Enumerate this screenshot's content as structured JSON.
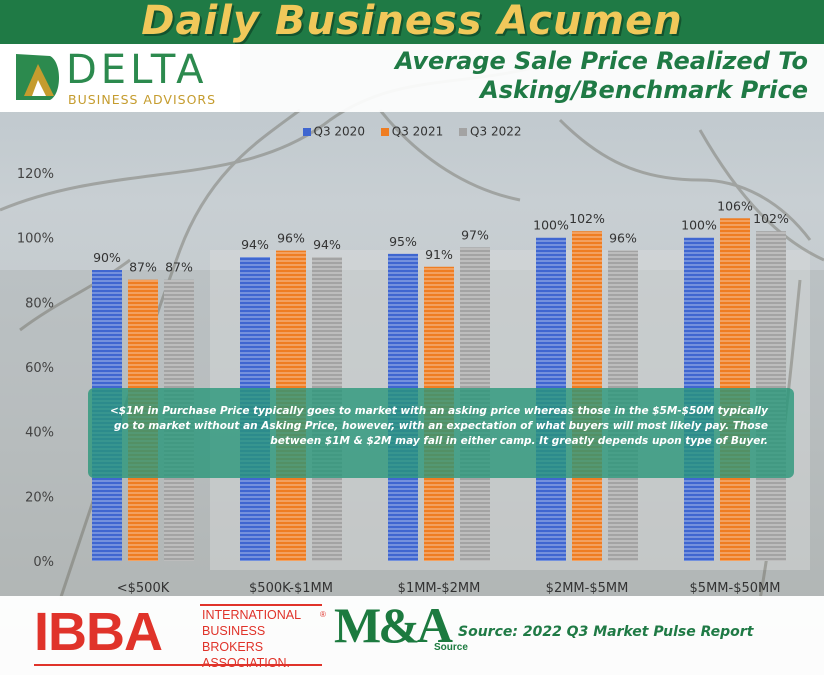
{
  "header": {
    "banner_title": "Daily Business Acumen",
    "company_name": "DELTA",
    "company_tagline": "BUSINESS ADVISORS"
  },
  "chart_data": {
    "type": "bar",
    "title": "Average Sale Price Realized To Asking/Benchmark Price",
    "categories": [
      "<$500K",
      "$500K-$1MM",
      "$1MM-$2MM",
      "$2MM-$5MM",
      "$5MM-$50MM"
    ],
    "series": [
      {
        "name": "Q3 2020",
        "color": "#3f66d0",
        "values": [
          90,
          94,
          95,
          100,
          100
        ]
      },
      {
        "name": "Q3 2021",
        "color": "#ef7d22",
        "values": [
          87,
          96,
          91,
          102,
          106
        ]
      },
      {
        "name": "Q3 2022",
        "color": "#a3a3a3",
        "values": [
          87,
          94,
          97,
          96,
          102
        ]
      }
    ],
    "data_labels": [
      [
        "90%",
        "87%",
        "87%"
      ],
      [
        "94%",
        "96%",
        "94%"
      ],
      [
        "95%",
        "91%",
        "97%"
      ],
      [
        "100%",
        "102%",
        "96%"
      ],
      [
        "100%",
        "106%",
        "102%"
      ]
    ],
    "y_ticks": [
      "0%",
      "20%",
      "40%",
      "60%",
      "80%",
      "100%",
      "120%"
    ],
    "ylim": [
      0,
      120
    ],
    "legend_position": "top",
    "grid": false
  },
  "annotation": {
    "text": "<$1M in Purchase Price typically goes to market with an asking price whereas those in the $5M-$50M typically go to market without an Asking Price, however, with an expectation of what buyers will most likely pay. Those between $1M & $2M may fall in either camp. It greatly depends upon type of Buyer."
  },
  "footer": {
    "ibba_logo": "IBBA",
    "ibba_name": "INTERNATIONAL BUSINESS BROKERS ASSOCIATION.",
    "ibba_reg": "®",
    "ma_logo": "M&A",
    "ma_source": "Source",
    "source_text": "Source: 2022 Q3 Market Pulse Report"
  }
}
